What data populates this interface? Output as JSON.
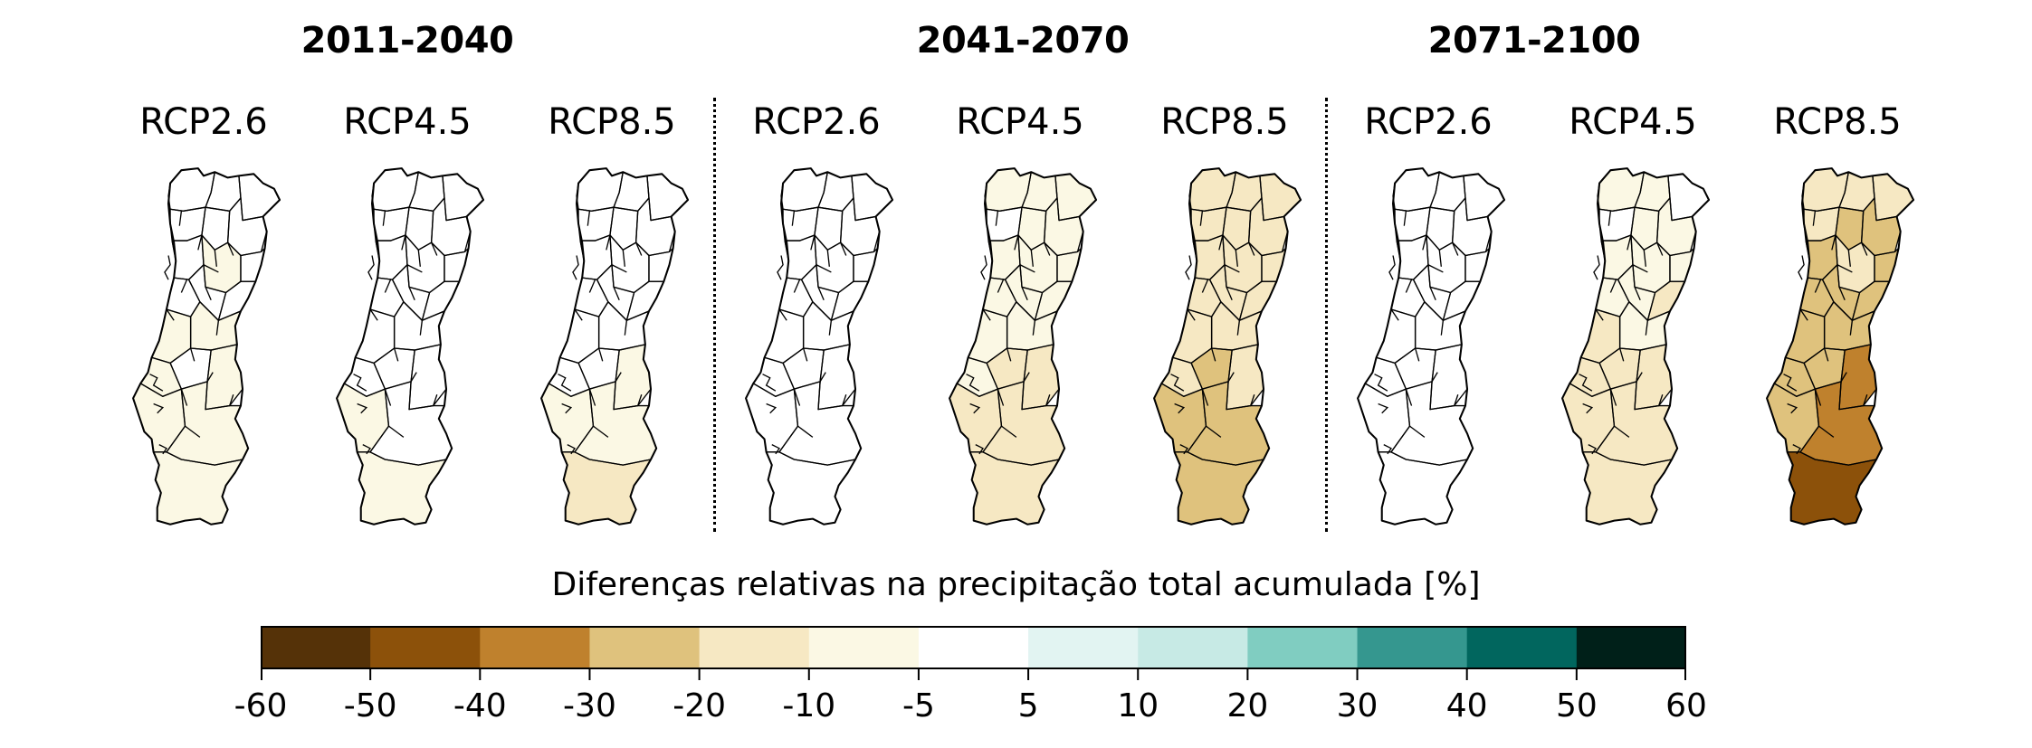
{
  "periods": [
    {
      "label": "2011-2040",
      "scenarios": [
        "RCP2.6",
        "RCP4.5",
        "RCP8.5"
      ]
    },
    {
      "label": "2041-2070",
      "scenarios": [
        "RCP2.6",
        "RCP4.5",
        "RCP8.5"
      ]
    },
    {
      "label": "2071-2100",
      "scenarios": [
        "RCP2.6",
        "RCP4.5",
        "RCP8.5"
      ]
    }
  ],
  "maps": [
    {
      "period": "2011-2040",
      "scenario": "RCP2.6",
      "regions": [
        "0",
        "0",
        "0",
        "0",
        "0",
        "0",
        "0",
        "-5",
        "0",
        "0",
        "0",
        "0",
        "-5",
        "-5",
        "-5",
        "0",
        "-5",
        "-5",
        "-5",
        "-5"
      ]
    },
    {
      "period": "2011-2040",
      "scenario": "RCP4.5",
      "regions": [
        "0",
        "0",
        "0",
        "0",
        "0",
        "0",
        "0",
        "0",
        "0",
        "0",
        "0",
        "0",
        "0",
        "0",
        "0",
        "0",
        "0",
        "-5",
        "0",
        "-5"
      ]
    },
    {
      "period": "2011-2040",
      "scenario": "RCP8.5",
      "regions": [
        "0",
        "0",
        "0",
        "0",
        "0",
        "0",
        "0",
        "0",
        "0",
        "0",
        "0",
        "0",
        "0",
        "0",
        "0",
        "0",
        "-5",
        "-5",
        "-5",
        "-10"
      ]
    },
    {
      "period": "2041-2070",
      "scenario": "RCP2.6",
      "regions": [
        "0",
        "0",
        "0",
        "0",
        "0",
        "0",
        "0",
        "0",
        "0",
        "0",
        "0",
        "0",
        "0",
        "0",
        "0",
        "0",
        "0",
        "0",
        "0",
        "0"
      ]
    },
    {
      "period": "2041-2070",
      "scenario": "RCP4.5",
      "regions": [
        "-5",
        "-5",
        "-5",
        "0",
        "-5",
        "-5",
        "-5",
        "-5",
        "-5",
        "-5",
        "-5",
        "-5",
        "-5",
        "-5",
        "-5",
        "-10",
        "-10",
        "-10",
        "-10",
        "-10"
      ]
    },
    {
      "period": "2041-2070",
      "scenario": "RCP8.5",
      "regions": [
        "-10",
        "-10",
        "-10",
        "-10",
        "-10",
        "-10",
        "-10",
        "-10",
        "-10",
        "-10",
        "-10",
        "-10",
        "-10",
        "-10",
        "-10",
        "-20",
        "-10",
        "-20",
        "-20",
        "-20"
      ]
    },
    {
      "period": "2071-2100",
      "scenario": "RCP2.6",
      "regions": [
        "0",
        "0",
        "0",
        "0",
        "0",
        "0",
        "0",
        "0",
        "0",
        "0",
        "0",
        "0",
        "0",
        "0",
        "0",
        "0",
        "0",
        "0",
        "0",
        "0"
      ]
    },
    {
      "period": "2071-2100",
      "scenario": "RCP4.5",
      "regions": [
        "-5",
        "-5",
        "0",
        "0",
        "-5",
        "-5",
        "-5",
        "-5",
        "-5",
        "-5",
        "-5",
        "-10",
        "-10",
        "-5",
        "-10",
        "-10",
        "-10",
        "-10",
        "-10",
        "-10"
      ]
    },
    {
      "period": "2071-2100",
      "scenario": "RCP8.5",
      "regions": [
        "-10",
        "-10",
        "-10",
        "-10",
        "-20",
        "-20",
        "-20",
        "-10",
        "-20",
        "-20",
        "-20",
        "-20",
        "-20",
        "-20",
        "-20",
        "-20",
        "-30",
        "-20",
        "-30",
        "-40"
      ]
    }
  ],
  "legend": {
    "title": "Diferenças relativas na precipitação total acumulada [%]",
    "ticks": [
      "-60",
      "-50",
      "-40",
      "-30",
      "-20",
      "-10",
      "-5",
      "5",
      "10",
      "20",
      "30",
      "40",
      "50",
      "60"
    ],
    "bins": [
      {
        "range": "-60 to -50",
        "color": "#553208"
      },
      {
        "range": "-50 to -40",
        "color": "#8c510a"
      },
      {
        "range": "-40 to -30",
        "color": "#bf812d"
      },
      {
        "range": "-30 to -20",
        "color": "#dfc27d"
      },
      {
        "range": "-20 to -10",
        "color": "#f6e8c3"
      },
      {
        "range": "-10 to -5",
        "color": "#fbf8e4"
      },
      {
        "range": "-5 to 5",
        "color": "#ffffff"
      },
      {
        "range": "5 to 10",
        "color": "#e2f4f2"
      },
      {
        "range": "10 to 20",
        "color": "#c7eae5"
      },
      {
        "range": "20 to 30",
        "color": "#80cdc1"
      },
      {
        "range": "30 to 40",
        "color": "#35978f"
      },
      {
        "range": "40 to 50",
        "color": "#01665e"
      },
      {
        "range": "50 to 60",
        "color": "#002019"
      }
    ]
  },
  "class_colors": {
    "0": "#ffffff",
    "-5": "#fbf8e4",
    "-10": "#f6e8c3",
    "-20": "#dfc27d",
    "-30": "#bf812d",
    "-40": "#8c510a"
  }
}
